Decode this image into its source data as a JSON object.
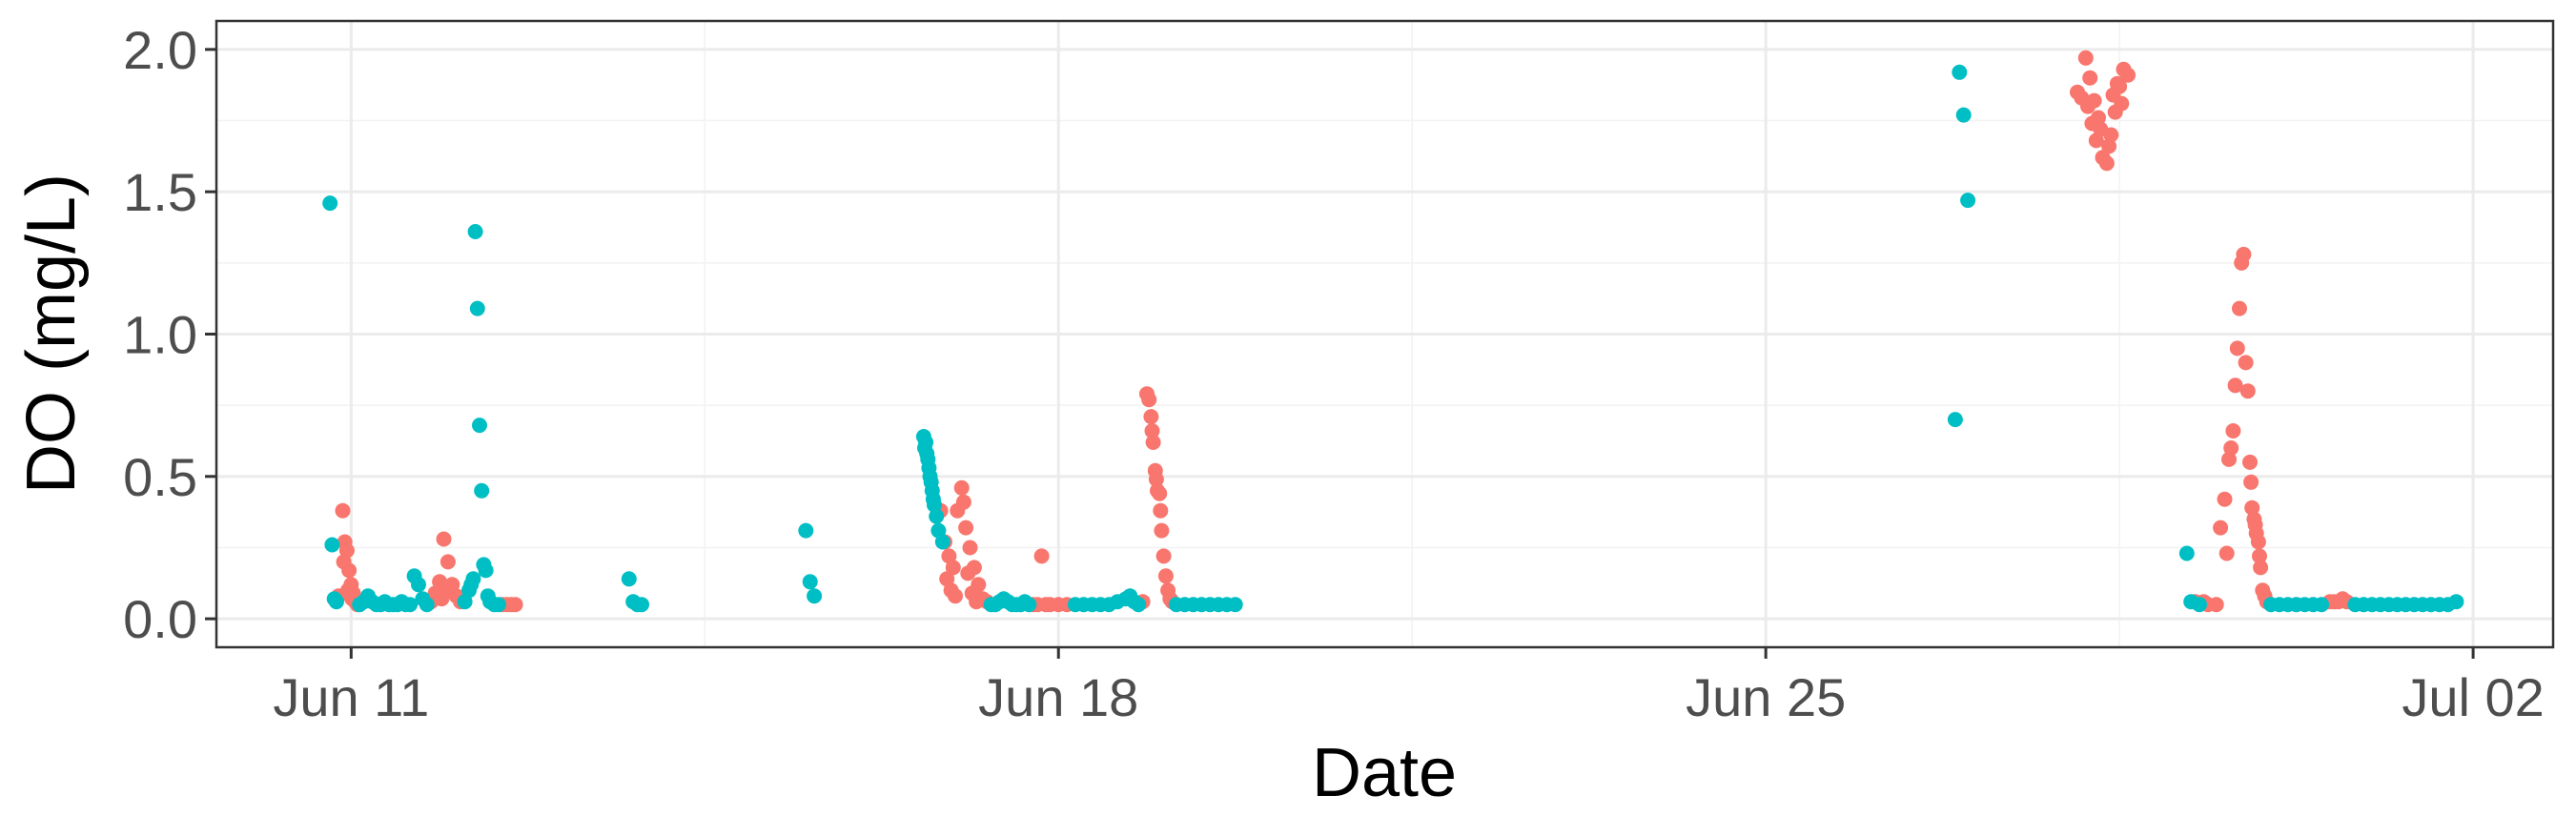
{
  "chart_data": {
    "type": "scatter",
    "title": "",
    "xlabel": "Date",
    "ylabel": "DO (mg/L)",
    "x_type": "date",
    "x_range": [
      "2023-06-09T16:00",
      "2023-07-02T19:00"
    ],
    "ylim": [
      -0.1,
      2.1
    ],
    "x_ticks": [
      {
        "date": "2023-06-11",
        "label": "Jun 11"
      },
      {
        "date": "2023-06-18",
        "label": "Jun 18"
      },
      {
        "date": "2023-06-25",
        "label": "Jun 25"
      },
      {
        "date": "2023-07-02",
        "label": "Jul 02"
      }
    ],
    "y_ticks": [
      {
        "value": 0.0,
        "label": "0.0"
      },
      {
        "value": 0.5,
        "label": "0.5"
      },
      {
        "value": 1.0,
        "label": "1.0"
      },
      {
        "value": 1.5,
        "label": "1.5"
      },
      {
        "value": 2.0,
        "label": "2.0"
      }
    ],
    "grid": true,
    "legend": "none",
    "series": [
      {
        "color": "#F8766D",
        "points": [
          [
            "2023-06-10T21:00",
            0.08
          ],
          [
            "2023-06-10T22:00",
            0.38
          ],
          [
            "2023-06-10T22:30",
            0.27
          ],
          [
            "2023-06-10T23:00",
            0.24
          ],
          [
            "2023-06-10T23:30",
            0.17
          ],
          [
            "2023-06-11T00:00",
            0.12
          ],
          [
            "2023-06-11T00:30",
            0.09
          ],
          [
            "2023-06-11T01:00",
            0.06
          ],
          [
            "2023-06-11T01:30",
            0.05
          ],
          [
            "2023-06-10T22:15",
            0.2
          ],
          [
            "2023-06-10T23:15",
            0.1
          ],
          [
            "2023-06-11T00:15",
            0.07
          ],
          [
            "2023-06-11T19:00",
            0.06
          ],
          [
            "2023-06-11T20:00",
            0.09
          ],
          [
            "2023-06-11T21:00",
            0.13
          ],
          [
            "2023-06-11T22:00",
            0.28
          ],
          [
            "2023-06-11T23:00",
            0.2
          ],
          [
            "2023-06-12T00:00",
            0.12
          ],
          [
            "2023-06-12T01:00",
            0.08
          ],
          [
            "2023-06-12T02:00",
            0.06
          ],
          [
            "2023-06-11T22:30",
            0.1
          ],
          [
            "2023-06-11T21:30",
            0.07
          ],
          [
            "2023-06-12T12:00",
            0.05
          ],
          [
            "2023-06-12T13:00",
            0.05
          ],
          [
            "2023-06-12T14:00",
            0.05
          ],
          [
            "2023-06-12T15:00",
            0.05
          ],
          [
            "2023-06-16T20:00",
            0.38
          ],
          [
            "2023-06-16T21:00",
            0.27
          ],
          [
            "2023-06-16T22:00",
            0.22
          ],
          [
            "2023-06-16T23:00",
            0.18
          ],
          [
            "2023-06-17T00:00",
            0.38
          ],
          [
            "2023-06-17T01:00",
            0.46
          ],
          [
            "2023-06-17T01:30",
            0.41
          ],
          [
            "2023-06-17T02:00",
            0.32
          ],
          [
            "2023-06-17T03:00",
            0.25
          ],
          [
            "2023-06-17T04:00",
            0.18
          ],
          [
            "2023-06-17T05:00",
            0.12
          ],
          [
            "2023-06-17T06:00",
            0.07
          ],
          [
            "2023-06-17T07:00",
            0.06
          ],
          [
            "2023-06-16T21:30",
            0.14
          ],
          [
            "2023-06-16T22:30",
            0.1
          ],
          [
            "2023-06-16T23:30",
            0.08
          ],
          [
            "2023-06-17T02:30",
            0.16
          ],
          [
            "2023-06-17T03:30",
            0.09
          ],
          [
            "2023-06-17T04:30",
            0.06
          ],
          [
            "2023-06-17T20:00",
            0.22
          ],
          [
            "2023-06-17T18:00",
            0.05
          ],
          [
            "2023-06-17T19:00",
            0.05
          ],
          [
            "2023-06-17T21:00",
            0.05
          ],
          [
            "2023-06-17T22:00",
            0.05
          ],
          [
            "2023-06-18T00:00",
            0.05
          ],
          [
            "2023-06-18T02:00",
            0.05
          ],
          [
            "2023-06-18T20:00",
            0.06
          ],
          [
            "2023-06-18T21:00",
            0.79
          ],
          [
            "2023-06-18T21:30",
            0.77
          ],
          [
            "2023-06-18T22:00",
            0.71
          ],
          [
            "2023-06-18T22:30",
            0.62
          ],
          [
            "2023-06-18T23:00",
            0.52
          ],
          [
            "2023-06-18T23:30",
            0.45
          ],
          [
            "2023-06-19T00:00",
            0.44
          ],
          [
            "2023-06-19T00:30",
            0.31
          ],
          [
            "2023-06-19T01:00",
            0.22
          ],
          [
            "2023-06-19T01:30",
            0.15
          ],
          [
            "2023-06-19T02:00",
            0.1
          ],
          [
            "2023-06-19T02:30",
            0.07
          ],
          [
            "2023-06-19T03:00",
            0.06
          ],
          [
            "2023-06-18T22:15",
            0.66
          ],
          [
            "2023-06-18T23:15",
            0.49
          ],
          [
            "2023-06-19T00:15",
            0.38
          ],
          [
            "2023-06-28T02:00",
            1.85
          ],
          [
            "2023-06-28T03:00",
            1.83
          ],
          [
            "2023-06-28T04:00",
            1.97
          ],
          [
            "2023-06-28T05:00",
            1.9
          ],
          [
            "2023-06-28T06:00",
            1.82
          ],
          [
            "2023-06-28T07:00",
            1.76
          ],
          [
            "2023-06-28T08:00",
            1.62
          ],
          [
            "2023-06-28T09:00",
            1.6
          ],
          [
            "2023-06-28T10:00",
            1.7
          ],
          [
            "2023-06-28T11:00",
            1.78
          ],
          [
            "2023-06-28T12:00",
            1.87
          ],
          [
            "2023-06-28T13:00",
            1.93
          ],
          [
            "2023-06-28T14:00",
            1.91
          ],
          [
            "2023-06-28T04:30",
            1.8
          ],
          [
            "2023-06-28T05:30",
            1.74
          ],
          [
            "2023-06-28T06:30",
            1.68
          ],
          [
            "2023-06-28T07:30",
            1.72
          ],
          [
            "2023-06-28T09:30",
            1.66
          ],
          [
            "2023-06-28T10:30",
            1.84
          ],
          [
            "2023-06-28T11:30",
            1.88
          ],
          [
            "2023-06-28T12:30",
            1.81
          ],
          [
            "2023-06-29T06:00",
            0.06
          ],
          [
            "2023-06-29T08:00",
            0.06
          ],
          [
            "2023-06-29T09:00",
            0.05
          ],
          [
            "2023-06-29T11:00",
            0.05
          ],
          [
            "2023-06-29T12:00",
            0.32
          ],
          [
            "2023-06-29T13:00",
            0.42
          ],
          [
            "2023-06-29T14:00",
            0.56
          ],
          [
            "2023-06-29T15:00",
            0.66
          ],
          [
            "2023-06-29T15:30",
            0.82
          ],
          [
            "2023-06-29T16:00",
            0.95
          ],
          [
            "2023-06-29T16:30",
            1.09
          ],
          [
            "2023-06-29T17:00",
            1.25
          ],
          [
            "2023-06-29T17:30",
            1.28
          ],
          [
            "2023-06-29T18:00",
            0.9
          ],
          [
            "2023-06-29T18:30",
            0.8
          ],
          [
            "2023-06-29T19:00",
            0.55
          ],
          [
            "2023-06-29T19:30",
            0.39
          ],
          [
            "2023-06-29T20:00",
            0.35
          ],
          [
            "2023-06-29T20:30",
            0.3
          ],
          [
            "2023-06-29T21:00",
            0.27
          ],
          [
            "2023-06-29T21:30",
            0.18
          ],
          [
            "2023-06-29T22:00",
            0.1
          ],
          [
            "2023-06-29T22:30",
            0.08
          ],
          [
            "2023-06-29T23:00",
            0.06
          ],
          [
            "2023-06-29T13:30",
            0.23
          ],
          [
            "2023-06-29T14:30",
            0.6
          ],
          [
            "2023-06-29T19:15",
            0.48
          ],
          [
            "2023-06-29T20:15",
            0.33
          ],
          [
            "2023-06-29T21:15",
            0.22
          ],
          [
            "2023-06-30T14:00",
            0.06
          ],
          [
            "2023-06-30T15:00",
            0.06
          ],
          [
            "2023-06-30T16:00",
            0.06
          ],
          [
            "2023-06-30T17:00",
            0.07
          ],
          [
            "2023-06-30T18:00",
            0.06
          ]
        ]
      },
      {
        "color": "#00BFC4",
        "points": [
          [
            "2023-06-10T19:00",
            1.46
          ],
          [
            "2023-06-10T19:30",
            0.26
          ],
          [
            "2023-06-10T20:00",
            0.07
          ],
          [
            "2023-06-10T20:30",
            0.06
          ],
          [
            "2023-06-11T02:00",
            0.05
          ],
          [
            "2023-06-11T03:00",
            0.06
          ],
          [
            "2023-06-11T04:00",
            0.08
          ],
          [
            "2023-06-11T05:00",
            0.06
          ],
          [
            "2023-06-11T06:00",
            0.05
          ],
          [
            "2023-06-11T07:00",
            0.05
          ],
          [
            "2023-06-11T08:00",
            0.06
          ],
          [
            "2023-06-11T09:00",
            0.05
          ],
          [
            "2023-06-11T10:00",
            0.05
          ],
          [
            "2023-06-11T11:00",
            0.05
          ],
          [
            "2023-06-11T12:00",
            0.06
          ],
          [
            "2023-06-11T13:00",
            0.05
          ],
          [
            "2023-06-11T14:00",
            0.05
          ],
          [
            "2023-06-11T15:00",
            0.15
          ],
          [
            "2023-06-11T16:00",
            0.12
          ],
          [
            "2023-06-11T17:00",
            0.07
          ],
          [
            "2023-06-11T18:00",
            0.05
          ],
          [
            "2023-06-12T03:00",
            0.06
          ],
          [
            "2023-06-12T04:00",
            0.1
          ],
          [
            "2023-06-12T05:00",
            0.14
          ],
          [
            "2023-06-12T05:30",
            1.36
          ],
          [
            "2023-06-12T06:00",
            1.09
          ],
          [
            "2023-06-12T06:30",
            0.68
          ],
          [
            "2023-06-12T07:00",
            0.45
          ],
          [
            "2023-06-12T07:30",
            0.19
          ],
          [
            "2023-06-12T08:00",
            0.17
          ],
          [
            "2023-06-12T08:30",
            0.08
          ],
          [
            "2023-06-12T09:00",
            0.06
          ],
          [
            "2023-06-12T10:00",
            0.05
          ],
          [
            "2023-06-12T11:00",
            0.05
          ],
          [
            "2023-06-12T04:30",
            0.12
          ],
          [
            "2023-06-13T18:00",
            0.14
          ],
          [
            "2023-06-13T19:00",
            0.06
          ],
          [
            "2023-06-13T20:00",
            0.05
          ],
          [
            "2023-06-13T21:00",
            0.05
          ],
          [
            "2023-06-15T12:00",
            0.31
          ],
          [
            "2023-06-15T13:00",
            0.13
          ],
          [
            "2023-06-15T14:00",
            0.08
          ],
          [
            "2023-06-16T16:00",
            0.64
          ],
          [
            "2023-06-16T16:30",
            0.62
          ],
          [
            "2023-06-16T17:00",
            0.56
          ],
          [
            "2023-06-16T17:30",
            0.5
          ],
          [
            "2023-06-16T18:00",
            0.45
          ],
          [
            "2023-06-16T18:30",
            0.4
          ],
          [
            "2023-06-16T19:00",
            0.36
          ],
          [
            "2023-06-16T19:30",
            0.31
          ],
          [
            "2023-06-16T20:30",
            0.27
          ],
          [
            "2023-06-16T16:15",
            0.6
          ],
          [
            "2023-06-16T16:45",
            0.58
          ],
          [
            "2023-06-16T17:15",
            0.53
          ],
          [
            "2023-06-16T17:45",
            0.48
          ],
          [
            "2023-06-16T18:15",
            0.42
          ],
          [
            "2023-06-17T08:00",
            0.05
          ],
          [
            "2023-06-17T09:00",
            0.05
          ],
          [
            "2023-06-17T10:00",
            0.06
          ],
          [
            "2023-06-17T11:00",
            0.07
          ],
          [
            "2023-06-17T12:00",
            0.06
          ],
          [
            "2023-06-17T13:00",
            0.05
          ],
          [
            "2023-06-17T14:00",
            0.05
          ],
          [
            "2023-06-17T15:00",
            0.05
          ],
          [
            "2023-06-17T16:00",
            0.06
          ],
          [
            "2023-06-17T17:00",
            0.05
          ],
          [
            "2023-06-18T04:00",
            0.05
          ],
          [
            "2023-06-18T06:00",
            0.05
          ],
          [
            "2023-06-18T08:00",
            0.05
          ],
          [
            "2023-06-18T10:00",
            0.05
          ],
          [
            "2023-06-18T12:00",
            0.05
          ],
          [
            "2023-06-18T14:00",
            0.06
          ],
          [
            "2023-06-18T16:00",
            0.07
          ],
          [
            "2023-06-18T17:00",
            0.08
          ],
          [
            "2023-06-18T18:00",
            0.06
          ],
          [
            "2023-06-18T19:00",
            0.05
          ],
          [
            "2023-06-19T04:00",
            0.05
          ],
          [
            "2023-06-19T06:00",
            0.05
          ],
          [
            "2023-06-19T08:00",
            0.05
          ],
          [
            "2023-06-19T10:00",
            0.05
          ],
          [
            "2023-06-19T12:00",
            0.05
          ],
          [
            "2023-06-19T14:00",
            0.05
          ],
          [
            "2023-06-19T16:00",
            0.05
          ],
          [
            "2023-06-19T18:00",
            0.05
          ],
          [
            "2023-06-26T21:00",
            0.7
          ],
          [
            "2023-06-26T22:00",
            1.92
          ],
          [
            "2023-06-26T23:00",
            1.77
          ],
          [
            "2023-06-27T00:00",
            1.47
          ],
          [
            "2023-06-29T04:00",
            0.23
          ],
          [
            "2023-06-29T05:00",
            0.06
          ],
          [
            "2023-06-29T07:00",
            0.05
          ],
          [
            "2023-06-30T00:00",
            0.05
          ],
          [
            "2023-06-30T02:00",
            0.05
          ],
          [
            "2023-06-30T04:00",
            0.05
          ],
          [
            "2023-06-30T06:00",
            0.05
          ],
          [
            "2023-06-30T08:00",
            0.05
          ],
          [
            "2023-06-30T10:00",
            0.05
          ],
          [
            "2023-06-30T12:00",
            0.05
          ],
          [
            "2023-06-30T20:00",
            0.05
          ],
          [
            "2023-06-30T22:00",
            0.05
          ],
          [
            "2023-07-01T00:00",
            0.05
          ],
          [
            "2023-07-01T02:00",
            0.05
          ],
          [
            "2023-07-01T04:00",
            0.05
          ],
          [
            "2023-07-01T06:00",
            0.05
          ],
          [
            "2023-07-01T08:00",
            0.05
          ],
          [
            "2023-07-01T10:00",
            0.05
          ],
          [
            "2023-07-01T12:00",
            0.05
          ],
          [
            "2023-07-01T14:00",
            0.05
          ],
          [
            "2023-07-01T16:00",
            0.05
          ],
          [
            "2023-07-01T18:00",
            0.05
          ],
          [
            "2023-07-01T20:00",
            0.06
          ]
        ]
      }
    ]
  }
}
